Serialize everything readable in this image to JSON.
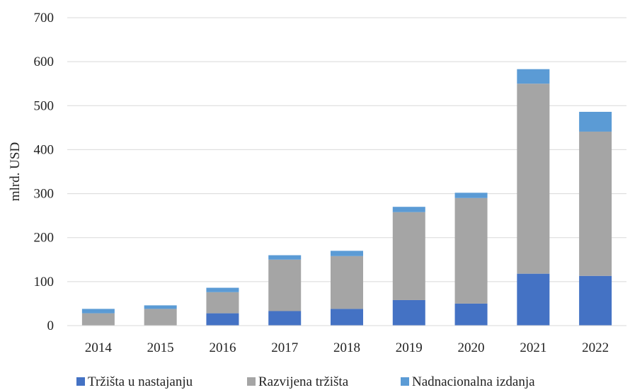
{
  "chart_data": {
    "type": "bar",
    "stacked": true,
    "categories": [
      "2014",
      "2015",
      "2016",
      "2017",
      "2018",
      "2019",
      "2020",
      "2021",
      "2022"
    ],
    "series": [
      {
        "name": "Tržišta u nastajanju",
        "color": "#4472c4",
        "values": [
          0,
          0,
          28,
          33,
          38,
          58,
          50,
          118,
          113
        ]
      },
      {
        "name": "Razvijena tržišta",
        "color": "#a5a5a5",
        "values": [
          28,
          38,
          48,
          117,
          120,
          200,
          240,
          432,
          328
        ]
      },
      {
        "name": "Nadnacionalna izdanja",
        "color": "#5b9bd5",
        "values": [
          10,
          8,
          10,
          10,
          12,
          12,
          12,
          33,
          45
        ]
      }
    ],
    "ylabel": "mlrd. USD",
    "ylim": [
      0,
      700
    ],
    "yticks": [
      0,
      100,
      200,
      300,
      400,
      500,
      600,
      700
    ],
    "grid": true,
    "legend_position": "bottom"
  }
}
